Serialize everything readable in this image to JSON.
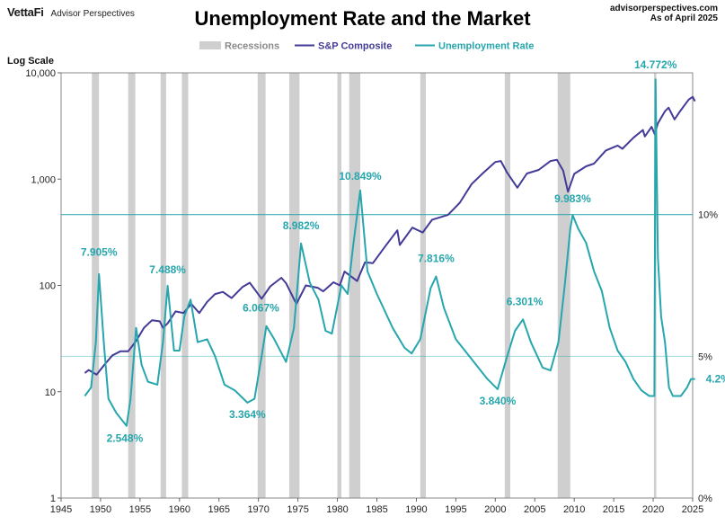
{
  "header": {
    "brand": "VettaFi",
    "brand_sub": "Advisor Perspectives",
    "source": "advisorperspectives.com",
    "date": "As of April 2025"
  },
  "chart_data": {
    "type": "line",
    "title": "Unemployment Rate and the Market",
    "y_left_label": "Log Scale",
    "y_left_scale": "log",
    "y_left_range": [
      1,
      10000
    ],
    "y_left_ticks": [
      "1",
      "10",
      "100",
      "1,000",
      "10,000"
    ],
    "y_right_range": [
      0,
      15
    ],
    "y_right_ticks": [
      "0%",
      "5%",
      "10%"
    ],
    "x_range": [
      1945,
      2025
    ],
    "x_ticks": [
      "1945",
      "1950",
      "1955",
      "1960",
      "1965",
      "1970",
      "1975",
      "1980",
      "1985",
      "1990",
      "1995",
      "2000",
      "2005",
      "2010",
      "2015",
      "2020",
      "2025"
    ],
    "legend_position": "top-center",
    "legend": [
      {
        "name": "Recessions",
        "color": "#cfcfcf"
      },
      {
        "name": "S&P Composite",
        "color": "#433b97"
      },
      {
        "name": "Unemployment Rate",
        "color": "#26a6ad"
      }
    ],
    "recessions": [
      [
        1948.9,
        1949.8
      ],
      [
        1953.5,
        1954.4
      ],
      [
        1957.6,
        1958.3
      ],
      [
        1960.3,
        1961.1
      ],
      [
        1969.9,
        1970.9
      ],
      [
        1973.9,
        1975.2
      ],
      [
        1980.0,
        1980.5
      ],
      [
        1981.5,
        1982.9
      ],
      [
        1990.5,
        1991.2
      ],
      [
        2001.2,
        2001.9
      ],
      [
        2007.9,
        2009.5
      ],
      [
        2020.1,
        2020.4
      ]
    ],
    "sp_composite": [
      [
        1948.0,
        15
      ],
      [
        1948.5,
        16
      ],
      [
        1949.5,
        14.5
      ],
      [
        1950.5,
        18
      ],
      [
        1951.5,
        22
      ],
      [
        1952.5,
        24
      ],
      [
        1953.5,
        24
      ],
      [
        1954.5,
        30
      ],
      [
        1955.5,
        40
      ],
      [
        1956.5,
        47
      ],
      [
        1957.5,
        46
      ],
      [
        1957.9,
        40
      ],
      [
        1958.5,
        44
      ],
      [
        1959.5,
        57
      ],
      [
        1960.5,
        55
      ],
      [
        1961.5,
        67
      ],
      [
        1962.5,
        55
      ],
      [
        1963.5,
        70
      ],
      [
        1964.5,
        83
      ],
      [
        1965.5,
        87
      ],
      [
        1966.6,
        76
      ],
      [
        1968.0,
        97
      ],
      [
        1968.9,
        106
      ],
      [
        1970.4,
        75
      ],
      [
        1971.5,
        98
      ],
      [
        1972.9,
        118
      ],
      [
        1973.5,
        105
      ],
      [
        1974.8,
        67
      ],
      [
        1976.0,
        100
      ],
      [
        1977.5,
        95
      ],
      [
        1978.2,
        88
      ],
      [
        1979.5,
        107
      ],
      [
        1980.3,
        100
      ],
      [
        1980.9,
        135
      ],
      [
        1982.5,
        110
      ],
      [
        1983.5,
        165
      ],
      [
        1984.5,
        162
      ],
      [
        1986.0,
        230
      ],
      [
        1987.6,
        330
      ],
      [
        1987.9,
        240
      ],
      [
        1989.5,
        350
      ],
      [
        1990.8,
        315
      ],
      [
        1992.0,
        415
      ],
      [
        1994.0,
        460
      ],
      [
        1995.5,
        600
      ],
      [
        1997.0,
        900
      ],
      [
        1998.5,
        1150
      ],
      [
        2000.0,
        1450
      ],
      [
        2000.7,
        1480
      ],
      [
        2001.5,
        1150
      ],
      [
        2002.8,
        830
      ],
      [
        2004.0,
        1130
      ],
      [
        2005.5,
        1220
      ],
      [
        2007.0,
        1480
      ],
      [
        2007.8,
        1520
      ],
      [
        2008.6,
        1200
      ],
      [
        2009.2,
        760
      ],
      [
        2010.0,
        1120
      ],
      [
        2011.5,
        1320
      ],
      [
        2012.5,
        1400
      ],
      [
        2014.0,
        1860
      ],
      [
        2015.5,
        2070
      ],
      [
        2016.1,
        1930
      ],
      [
        2017.5,
        2450
      ],
      [
        2018.7,
        2900
      ],
      [
        2018.95,
        2520
      ],
      [
        2019.8,
        3100
      ],
      [
        2020.2,
        2650
      ],
      [
        2020.6,
        3350
      ],
      [
        2021.5,
        4350
      ],
      [
        2021.95,
        4700
      ],
      [
        2022.7,
        3650
      ],
      [
        2023.5,
        4450
      ],
      [
        2024.5,
        5600
      ],
      [
        2025.0,
        5950
      ],
      [
        2025.3,
        5400
      ]
    ],
    "unemployment_rate": [
      [
        1948.0,
        3.6
      ],
      [
        1948.8,
        3.9
      ],
      [
        1949.4,
        5.5
      ],
      [
        1949.8,
        7.9
      ],
      [
        1950.4,
        5.5
      ],
      [
        1951.0,
        3.5
      ],
      [
        1952.0,
        3.0
      ],
      [
        1953.3,
        2.548
      ],
      [
        1953.8,
        3.5
      ],
      [
        1954.5,
        6.0
      ],
      [
        1955.2,
        4.7
      ],
      [
        1956.0,
        4.1
      ],
      [
        1957.2,
        4.0
      ],
      [
        1957.9,
        5.5
      ],
      [
        1958.5,
        7.488
      ],
      [
        1959.3,
        5.2
      ],
      [
        1960.0,
        5.2
      ],
      [
        1960.6,
        6.4
      ],
      [
        1961.4,
        7.0
      ],
      [
        1962.3,
        5.5
      ],
      [
        1963.5,
        5.6
      ],
      [
        1964.5,
        5.0
      ],
      [
        1965.7,
        4.0
      ],
      [
        1967.0,
        3.8
      ],
      [
        1968.6,
        3.364
      ],
      [
        1969.5,
        3.5
      ],
      [
        1970.4,
        5.0
      ],
      [
        1971.0,
        6.067
      ],
      [
        1972.0,
        5.6
      ],
      [
        1973.5,
        4.8
      ],
      [
        1974.5,
        6.0
      ],
      [
        1975.4,
        8.982
      ],
      [
        1976.5,
        7.6
      ],
      [
        1977.6,
        7.0
      ],
      [
        1978.5,
        5.9
      ],
      [
        1979.3,
        5.8
      ],
      [
        1980.5,
        7.5
      ],
      [
        1981.3,
        7.2
      ],
      [
        1982.0,
        8.9
      ],
      [
        1982.9,
        10.849
      ],
      [
        1983.8,
        8.0
      ],
      [
        1985.0,
        7.2
      ],
      [
        1987.0,
        6.0
      ],
      [
        1988.5,
        5.3
      ],
      [
        1989.4,
        5.1
      ],
      [
        1990.5,
        5.6
      ],
      [
        1991.8,
        7.4
      ],
      [
        1992.5,
        7.816
      ],
      [
        1993.5,
        6.7
      ],
      [
        1995.0,
        5.6
      ],
      [
        1997.0,
        4.9
      ],
      [
        1999.0,
        4.2
      ],
      [
        2000.3,
        3.84
      ],
      [
        2001.5,
        5.0
      ],
      [
        2002.5,
        5.9
      ],
      [
        2003.5,
        6.301
      ],
      [
        2004.5,
        5.5
      ],
      [
        2006.0,
        4.6
      ],
      [
        2007.0,
        4.5
      ],
      [
        2008.0,
        5.5
      ],
      [
        2008.8,
        7.5
      ],
      [
        2009.5,
        9.5
      ],
      [
        2009.8,
        9.983
      ],
      [
        2010.5,
        9.5
      ],
      [
        2011.5,
        9.0
      ],
      [
        2012.5,
        8.0
      ],
      [
        2013.5,
        7.3
      ],
      [
        2014.5,
        6.0
      ],
      [
        2015.5,
        5.2
      ],
      [
        2016.5,
        4.8
      ],
      [
        2017.5,
        4.2
      ],
      [
        2018.5,
        3.8
      ],
      [
        2019.5,
        3.6
      ],
      [
        2020.15,
        3.6
      ],
      [
        2020.3,
        14.772
      ],
      [
        2020.6,
        8.5
      ],
      [
        2021.0,
        6.4
      ],
      [
        2021.5,
        5.5
      ],
      [
        2022.0,
        3.9
      ],
      [
        2022.5,
        3.6
      ],
      [
        2023.5,
        3.6
      ],
      [
        2024.3,
        3.9
      ],
      [
        2024.8,
        4.2
      ],
      [
        2025.3,
        4.2
      ]
    ],
    "annotations": [
      {
        "label": "7.905%",
        "x": 1949.8,
        "y": 7.905
      },
      {
        "label": "2.548%",
        "x": 1953.3,
        "y": 2.548
      },
      {
        "label": "7.488%",
        "x": 1958.5,
        "y": 7.488
      },
      {
        "label": "3.364%",
        "x": 1968.6,
        "y": 3.364
      },
      {
        "label": "6.067%",
        "x": 1971.0,
        "y": 6.067
      },
      {
        "label": "8.982%",
        "x": 1975.4,
        "y": 8.982
      },
      {
        "label": "10.849%",
        "x": 1982.9,
        "y": 10.849
      },
      {
        "label": "7.816%",
        "x": 1992.5,
        "y": 7.816
      },
      {
        "label": "3.840%",
        "x": 2000.3,
        "y": 3.84
      },
      {
        "label": "6.301%",
        "x": 2003.5,
        "y": 6.301
      },
      {
        "label": "9.983%",
        "x": 2009.8,
        "y": 9.983
      },
      {
        "label": "14.772%",
        "x": 2020.3,
        "y": 14.772
      },
      {
        "label": "4.2%",
        "x": 2025.3,
        "y": 4.2
      }
    ],
    "ref_lines": [
      10,
      5
    ]
  }
}
